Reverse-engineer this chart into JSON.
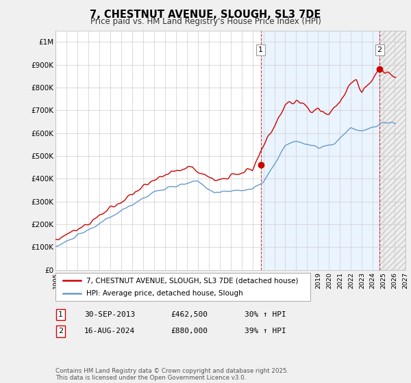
{
  "title": "7, CHESTNUT AVENUE, SLOUGH, SL3 7DE",
  "subtitle": "Price paid vs. HM Land Registry's House Price Index (HPI)",
  "ylim": [
    0,
    1050000
  ],
  "xlim_start": 1995.0,
  "xlim_end": 2027.0,
  "yticks": [
    0,
    100000,
    200000,
    300000,
    400000,
    500000,
    600000,
    700000,
    800000,
    900000,
    1000000
  ],
  "ytick_labels": [
    "£0",
    "£100K",
    "£200K",
    "£300K",
    "£400K",
    "£500K",
    "£600K",
    "£700K",
    "£800K",
    "£900K",
    "£1M"
  ],
  "xticks": [
    1995,
    1996,
    1997,
    1998,
    1999,
    2000,
    2001,
    2002,
    2003,
    2004,
    2005,
    2006,
    2007,
    2008,
    2009,
    2010,
    2011,
    2012,
    2013,
    2014,
    2015,
    2016,
    2017,
    2018,
    2019,
    2020,
    2021,
    2022,
    2023,
    2024,
    2025,
    2026,
    2027
  ],
  "red_color": "#cc0000",
  "blue_color": "#6699cc",
  "blue_fill_color": "#ddeeff",
  "gray_fill_color": "#e8e8e8",
  "marker1_x": 2013.75,
  "marker1_y": 462500,
  "marker2_x": 2024.62,
  "marker2_y": 880000,
  "legend_line1": "7, CHESTNUT AVENUE, SLOUGH, SL3 7DE (detached house)",
  "legend_line2": "HPI: Average price, detached house, Slough",
  "table_row1": [
    "1",
    "30-SEP-2013",
    "£462,500",
    "30% ↑ HPI"
  ],
  "table_row2": [
    "2",
    "16-AUG-2024",
    "£880,000",
    "39% ↑ HPI"
  ],
  "footer": "Contains HM Land Registry data © Crown copyright and database right 2025.\nThis data is licensed under the Open Government Licence v3.0.",
  "background_color": "#f0f0f0",
  "plot_bg_color": "#ffffff",
  "grid_color": "#cccccc"
}
